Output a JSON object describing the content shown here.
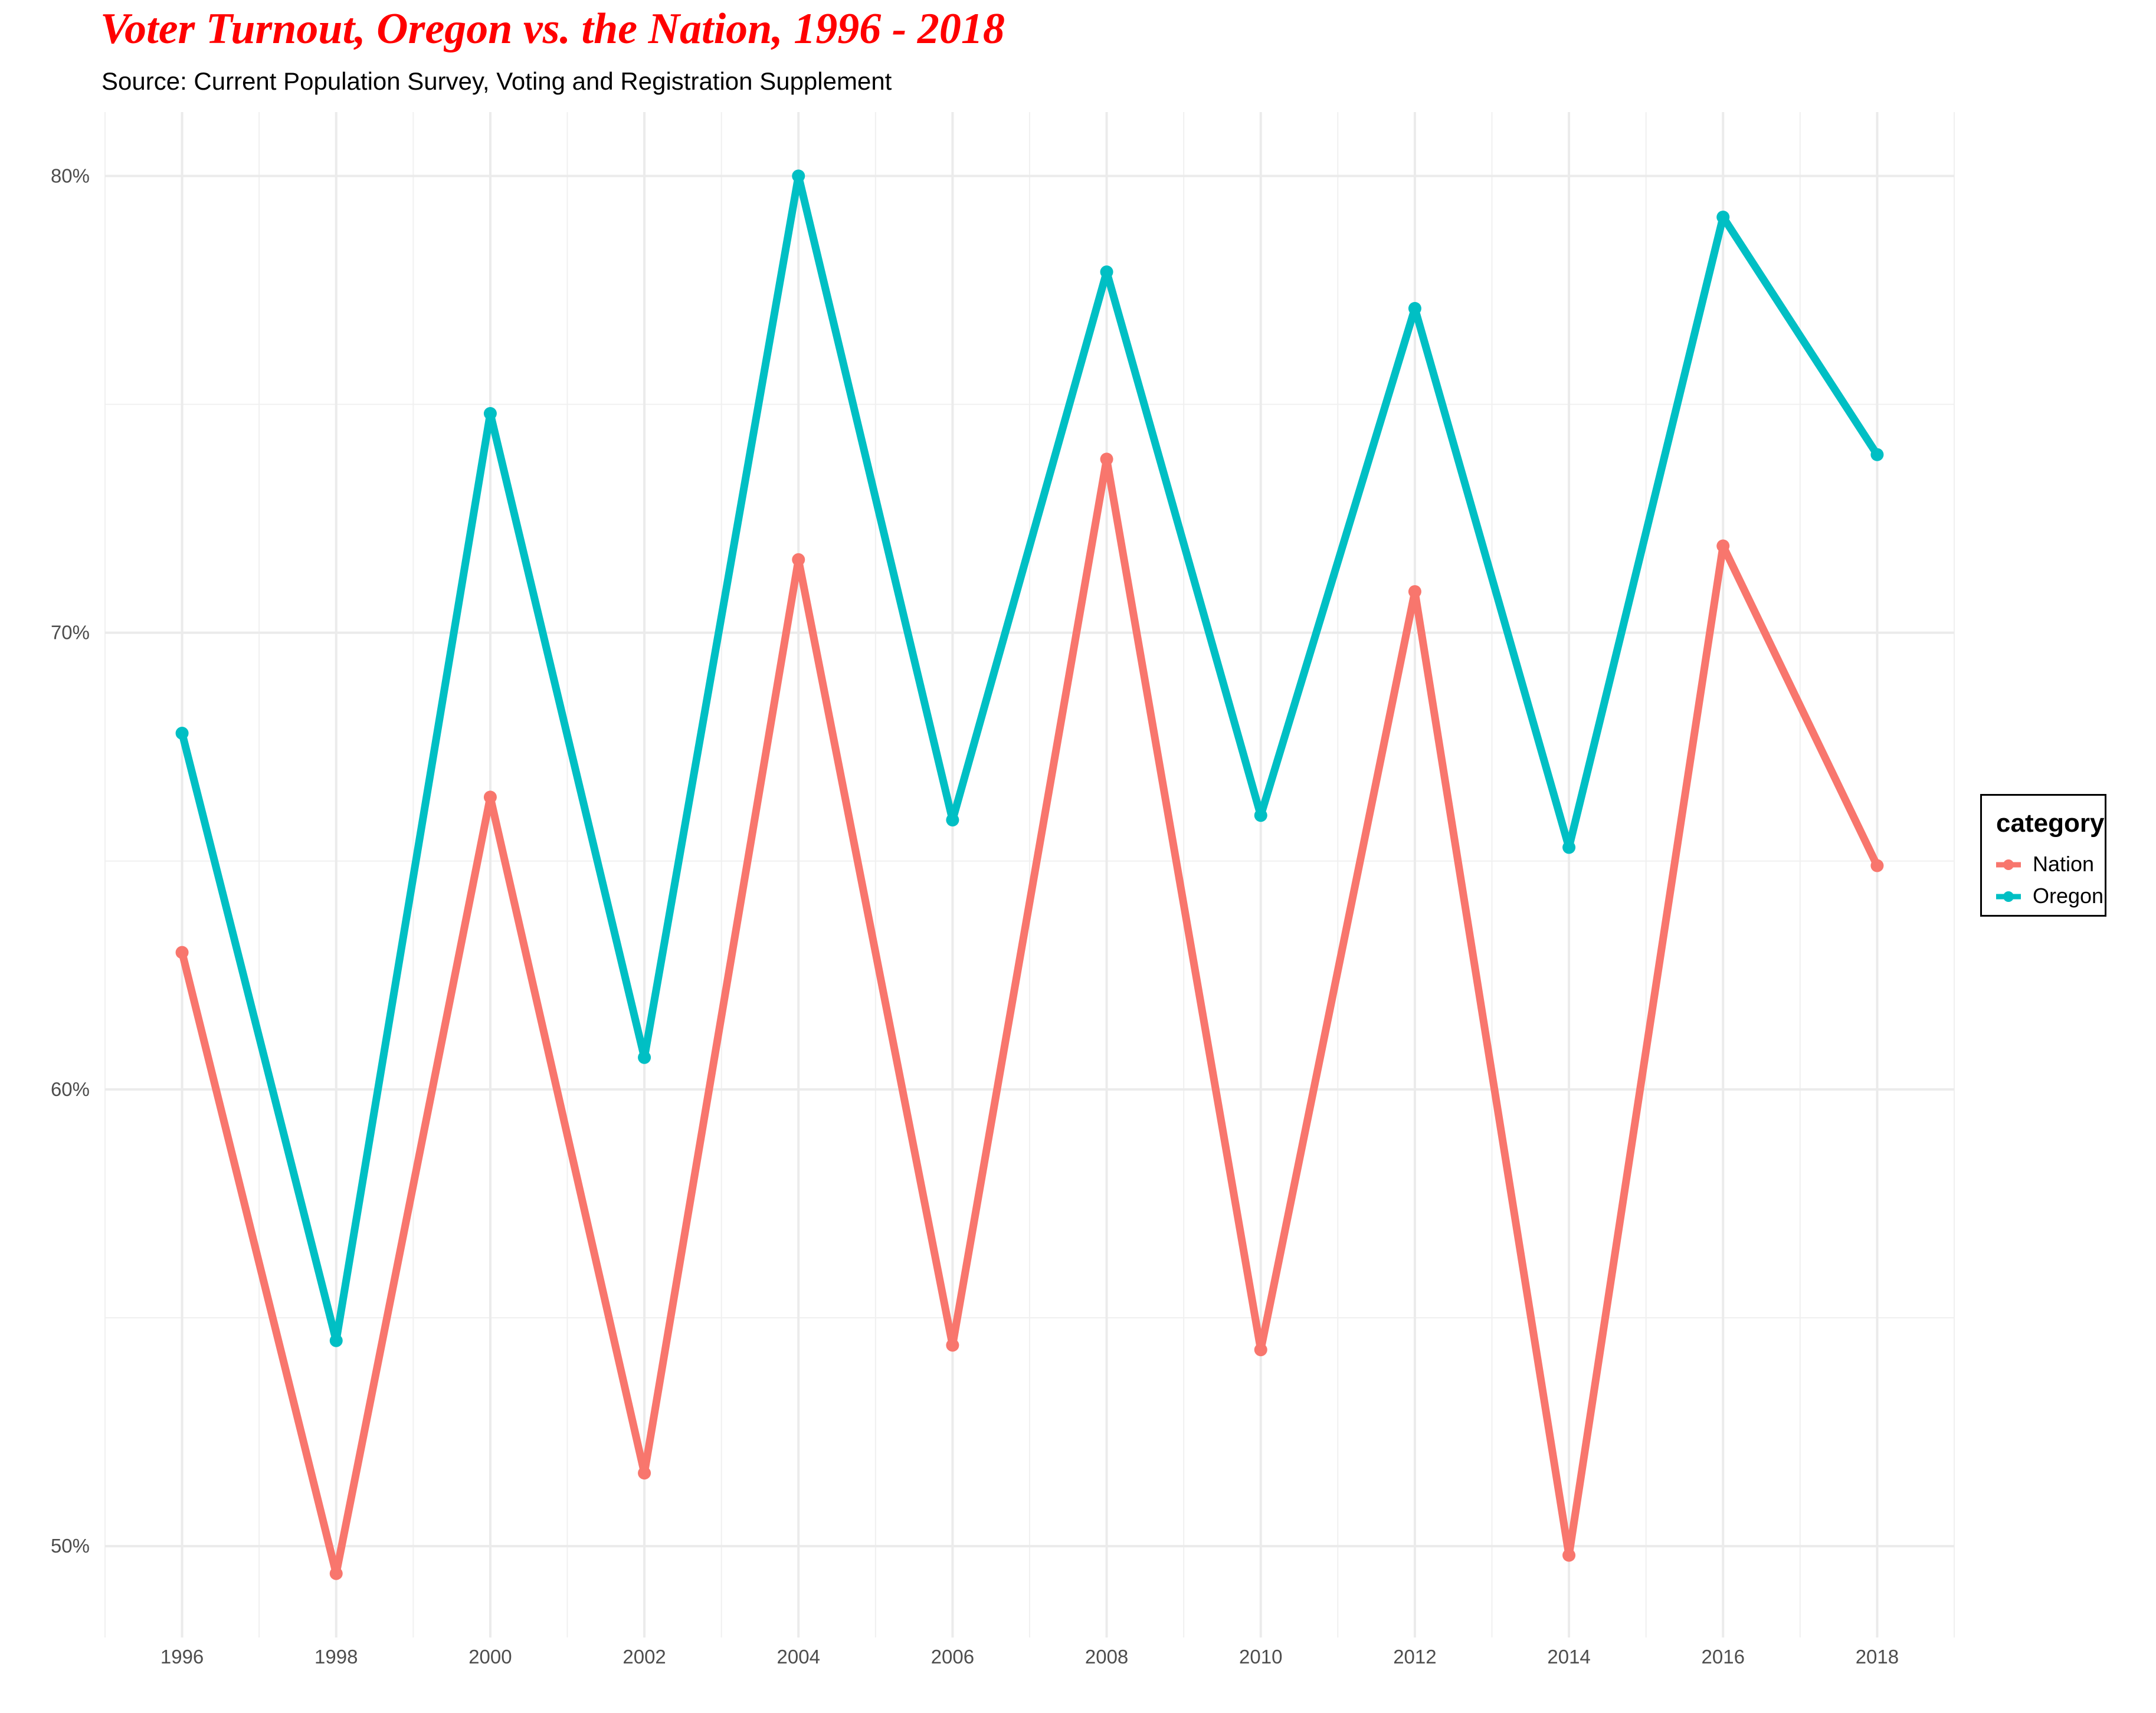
{
  "chart_data": {
    "type": "line",
    "title": "Voter Turnout, Oregon vs. the Nation, 1996 - 2018",
    "subtitle": "Source: Current Population Survey, Voting and Registration Supplement",
    "xlabel": "",
    "ylabel": "",
    "x": [
      1996,
      1998,
      2000,
      2002,
      2004,
      2006,
      2008,
      2010,
      2012,
      2014,
      2016,
      2018
    ],
    "x_ticks": [
      "1996",
      "1998",
      "2000",
      "2002",
      "2004",
      "2006",
      "2008",
      "2010",
      "2012",
      "2014",
      "2016",
      "2018"
    ],
    "xlim": [
      1995,
      2019
    ],
    "y_ticks": [
      {
        "value": 50,
        "label": "50%"
      },
      {
        "value": 60,
        "label": "60%"
      },
      {
        "value": 70,
        "label": "70%"
      },
      {
        "value": 80,
        "label": "80%"
      }
    ],
    "ylim": [
      48,
      81.4
    ],
    "grid": true,
    "legend": {
      "title": "category",
      "position": "right"
    },
    "series": [
      {
        "name": "Nation",
        "color": "#F8766D",
        "values": [
          63.0,
          49.4,
          66.4,
          51.6,
          71.6,
          54.4,
          73.8,
          54.3,
          70.9,
          49.8,
          71.9,
          64.9
        ]
      },
      {
        "name": "Oregon",
        "color": "#00BFC4",
        "values": [
          67.8,
          54.5,
          74.8,
          60.7,
          80.0,
          65.9,
          77.9,
          66.0,
          77.1,
          65.3,
          79.1,
          73.9
        ]
      }
    ],
    "title_color": "#FF0000"
  }
}
